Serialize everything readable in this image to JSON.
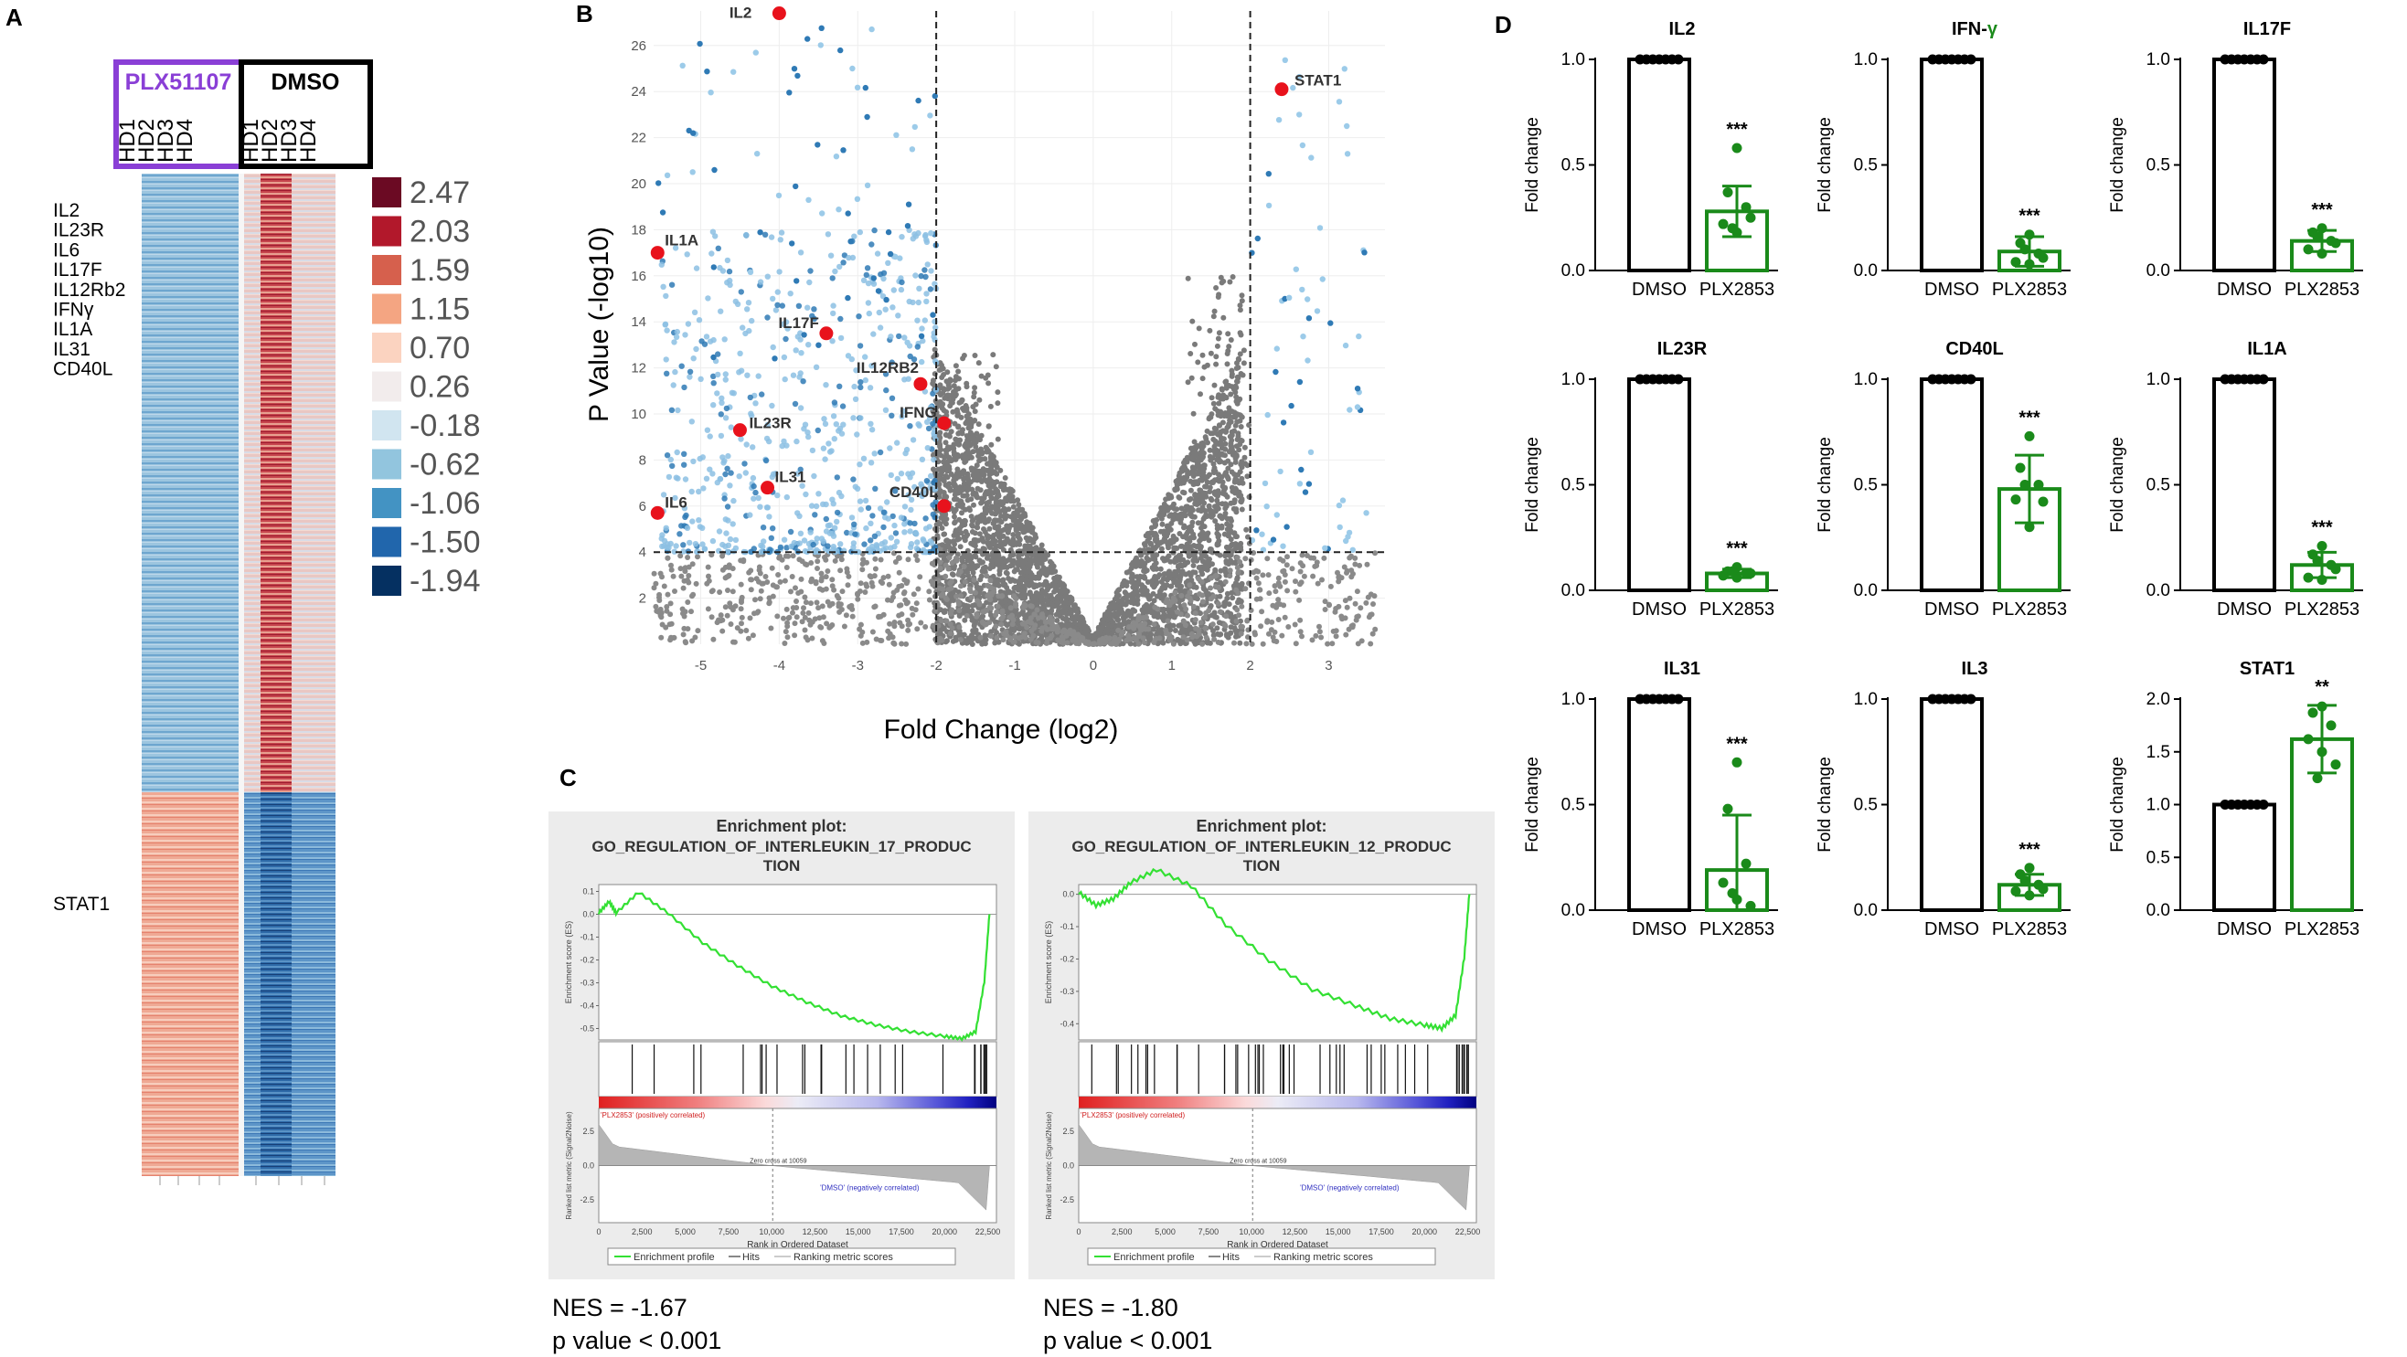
{
  "panels": {
    "a": "A",
    "b": "B",
    "c": "C",
    "d": "D"
  },
  "heatmap": {
    "group1": "PLX51107",
    "group2": "DMSO",
    "group1_color": "#8a3fd6",
    "samples1": [
      "HD1",
      "HD2",
      "HD3",
      "HD4"
    ],
    "samples2": [
      "HD1",
      "HD2",
      "HD3",
      "HD4"
    ],
    "genes_up": [
      "IL2",
      "IL23R",
      "IL6",
      "IL17F",
      "IL12Rb2",
      "IFNγ",
      "IL1A",
      "IL31",
      "CD40L"
    ],
    "genes_down": [
      "STAT1"
    ],
    "legend": [
      {
        "value": "2.47",
        "color": "#6b0a23"
      },
      {
        "value": "2.03",
        "color": "#b2182b"
      },
      {
        "value": "1.59",
        "color": "#d6604d"
      },
      {
        "value": "1.15",
        "color": "#f4a582"
      },
      {
        "value": "0.70",
        "color": "#fbd3c0"
      },
      {
        "value": "0.26",
        "color": "#f2ecec"
      },
      {
        "value": "-0.18",
        "color": "#d1e5f0"
      },
      {
        "value": "-0.62",
        "color": "#92c5de"
      },
      {
        "value": "-1.06",
        "color": "#4393c3"
      },
      {
        "value": "-1.50",
        "color": "#2166ac"
      },
      {
        "value": "-1.94",
        "color": "#053061"
      }
    ]
  },
  "volcano": {
    "xlabel": "Fold Change (log2)",
    "ylabel": "P Value (-log10)",
    "xticks": [
      -5,
      -4,
      -3,
      -2,
      -1,
      0,
      1,
      2,
      3
    ],
    "yticks": [
      2,
      4,
      6,
      8,
      10,
      12,
      14,
      16,
      18,
      20,
      22,
      24,
      26
    ],
    "xlim": [
      -5.6,
      3.6
    ],
    "ylim": [
      0,
      27.5
    ],
    "fc_threshold": 2,
    "p_threshold": 4,
    "highlighted": [
      {
        "label": "IL2",
        "x": -4.0,
        "y": 27.4
      },
      {
        "label": "STAT1",
        "x": 2.4,
        "y": 24.1
      },
      {
        "label": "IL1A",
        "x": -5.55,
        "y": 17.0
      },
      {
        "label": "IL17F",
        "x": -3.4,
        "y": 13.5
      },
      {
        "label": "IL12RB2",
        "x": -2.2,
        "y": 11.3
      },
      {
        "label": "IFNG",
        "x": -1.9,
        "y": 9.6
      },
      {
        "label": "IL23R",
        "x": -4.5,
        "y": 9.3
      },
      {
        "label": "IL31",
        "x": -4.15,
        "y": 6.8
      },
      {
        "label": "CD40L",
        "x": -1.9,
        "y": 6.0
      },
      {
        "label": "IL6",
        "x": -5.55,
        "y": 5.7
      }
    ]
  },
  "gsea": [
    {
      "title1": "Enrichment plot:",
      "title2": "GO_REGULATION_OF_INTERLEUKIN_17_PRODUC",
      "title3": "TION",
      "nes": "NES = -1.67",
      "pval": "p value < 0.001",
      "es_ticks": [
        "0.1",
        "0.0",
        "-0.1",
        "-0.2",
        "-0.3",
        "-0.4",
        "-0.5"
      ],
      "es_curve": [
        [
          0,
          0.0
        ],
        [
          600,
          0.05
        ],
        [
          1000,
          0.0
        ],
        [
          2300,
          0.09
        ],
        [
          4000,
          0.0
        ],
        [
          6000,
          -0.13
        ],
        [
          8000,
          -0.23
        ],
        [
          10000,
          -0.32
        ],
        [
          12000,
          -0.39
        ],
        [
          14000,
          -0.45
        ],
        [
          16000,
          -0.49
        ],
        [
          18000,
          -0.52
        ],
        [
          20000,
          -0.54
        ],
        [
          21000,
          -0.55
        ],
        [
          21800,
          -0.52
        ],
        [
          22300,
          -0.3
        ],
        [
          22600,
          0.0
        ]
      ]
    },
    {
      "title1": "Enrichment plot:",
      "title2": "GO_REGULATION_OF_INTERLEUKIN_12_PRODUC",
      "title3": "TION",
      "nes": "NES = -1.80",
      "pval": "p value < 0.001",
      "es_ticks": [
        "0.0",
        "-0.1",
        "-0.2",
        "-0.3",
        "-0.4"
      ],
      "es_curve": [
        [
          0,
          0.0
        ],
        [
          1000,
          -0.04
        ],
        [
          2000,
          -0.02
        ],
        [
          3000,
          0.03
        ],
        [
          4500,
          0.07
        ],
        [
          6500,
          0.02
        ],
        [
          8500,
          -0.1
        ],
        [
          11000,
          -0.21
        ],
        [
          13500,
          -0.3
        ],
        [
          16000,
          -0.35
        ],
        [
          18000,
          -0.39
        ],
        [
          20000,
          -0.41
        ],
        [
          21000,
          -0.42
        ],
        [
          21800,
          -0.38
        ],
        [
          22300,
          -0.2
        ],
        [
          22600,
          0.0
        ]
      ]
    }
  ],
  "gsea_common": {
    "ylabel_es": "Enrichment score (ES)",
    "ylabel_metric": "Ranked list metric (Signal2Noise)",
    "xlabel": "Rank in Ordered Dataset",
    "pos_label": "'PLX2853' (positively correlated)",
    "neg_label": "'DMSO' (negatively correlated)",
    "zero_cross": "Zero cross at 10059",
    "metric_ticks": [
      "2.5",
      "0.0",
      "-2.5"
    ],
    "xticks": [
      "0",
      "2,500",
      "5,000",
      "7,500",
      "10,000",
      "12,500",
      "15,000",
      "17,500",
      "20,000",
      "22,500"
    ],
    "legend": [
      "Enrichment profile",
      "Hits",
      "Ranking metric scores"
    ]
  },
  "bar_colors": {
    "dmso": "#000000",
    "plx": "#1a8a1a"
  },
  "chart_data": [
    {
      "type": "bar",
      "title": "IL2",
      "categories": [
        "DMSO",
        "PLX2853"
      ],
      "values": [
        1.0,
        0.28
      ],
      "error": [
        0,
        0.12
      ],
      "ylabel": "Fold change",
      "ylim": [
        0,
        1.0
      ],
      "yticks": [
        "0.0",
        "0.5",
        "1.0"
      ],
      "sig": "***",
      "points": [
        [
          1,
          1,
          1,
          1,
          1,
          1,
          1
        ],
        [
          0.58,
          0.37,
          0.3,
          0.22,
          0.18,
          0.25,
          0.2
        ]
      ]
    },
    {
      "type": "bar",
      "title": "IFN-γ",
      "title_main": "IFN-",
      "title_greek": "γ",
      "categories": [
        "DMSO",
        "PLX2853"
      ],
      "values": [
        1.0,
        0.09
      ],
      "error": [
        0,
        0.07
      ],
      "ylabel": "Fold change",
      "ylim": [
        0,
        1.0
      ],
      "yticks": [
        "0.0",
        "0.5",
        "1.0"
      ],
      "sig": "***",
      "points": [
        [
          1,
          1,
          1,
          1,
          1,
          1,
          1
        ],
        [
          0.17,
          0.13,
          0.08,
          0.04,
          0.03,
          0.06,
          0.1
        ]
      ]
    },
    {
      "type": "bar",
      "title": "IL17F",
      "categories": [
        "DMSO",
        "PLX2853"
      ],
      "values": [
        1.0,
        0.14
      ],
      "error": [
        0,
        0.05
      ],
      "ylabel": "Fold change",
      "ylim": [
        0,
        1.0
      ],
      "yticks": [
        "0.0",
        "0.5",
        "1.0"
      ],
      "sig": "***",
      "points": [
        [
          1,
          1,
          1,
          1,
          1,
          1,
          1
        ],
        [
          0.2,
          0.18,
          0.14,
          0.1,
          0.08,
          0.13,
          0.16
        ]
      ]
    },
    {
      "type": "bar",
      "title": "IL23R",
      "categories": [
        "DMSO",
        "PLX2853"
      ],
      "values": [
        1.0,
        0.08
      ],
      "error": [
        0,
        0.02
      ],
      "ylabel": "Fold change",
      "ylim": [
        0,
        1.0
      ],
      "yticks": [
        "0.0",
        "0.5",
        "1.0"
      ],
      "sig": "***",
      "points": [
        [
          1,
          1,
          1,
          1,
          1,
          1,
          1
        ],
        [
          0.11,
          0.09,
          0.08,
          0.07,
          0.06,
          0.08,
          0.09
        ]
      ]
    },
    {
      "type": "bar",
      "title": "CD40L",
      "categories": [
        "DMSO",
        "PLX2853"
      ],
      "values": [
        1.0,
        0.48
      ],
      "error": [
        0,
        0.16
      ],
      "ylabel": "Fold change",
      "ylim": [
        0,
        1.0
      ],
      "yticks": [
        "0.0",
        "0.5",
        "1.0"
      ],
      "sig": "***",
      "points": [
        [
          1,
          1,
          1,
          1,
          1,
          1,
          1
        ],
        [
          0.73,
          0.58,
          0.5,
          0.43,
          0.3,
          0.42,
          0.5
        ]
      ]
    },
    {
      "type": "bar",
      "title": "IL1A",
      "categories": [
        "DMSO",
        "PLX2853"
      ],
      "values": [
        1.0,
        0.12
      ],
      "error": [
        0,
        0.06
      ],
      "ylabel": "Fold change",
      "ylim": [
        0,
        1.0
      ],
      "yticks": [
        "0.0",
        "0.5",
        "1.0"
      ],
      "sig": "***",
      "points": [
        [
          1,
          1,
          1,
          1,
          1,
          1,
          1
        ],
        [
          0.21,
          0.17,
          0.12,
          0.06,
          0.05,
          0.1,
          0.14
        ]
      ]
    },
    {
      "type": "bar",
      "title": "IL31",
      "categories": [
        "DMSO",
        "PLX2853"
      ],
      "values": [
        1.0,
        0.19
      ],
      "error": [
        0,
        0.26
      ],
      "ylabel": "Fold change",
      "ylim": [
        0,
        1.0
      ],
      "yticks": [
        "0.0",
        "0.5",
        "1.0"
      ],
      "sig": "***",
      "points": [
        [
          1,
          1,
          1,
          1,
          1,
          1,
          1
        ],
        [
          0.7,
          0.48,
          0.22,
          0.13,
          0.05,
          0.02,
          0.08
        ]
      ]
    },
    {
      "type": "bar",
      "title": "IL3",
      "categories": [
        "DMSO",
        "PLX2853"
      ],
      "values": [
        1.0,
        0.12
      ],
      "error": [
        0,
        0.05
      ],
      "ylabel": "Fold change",
      "ylim": [
        0,
        1.0
      ],
      "yticks": [
        "0.0",
        "0.5",
        "1.0"
      ],
      "sig": "***",
      "points": [
        [
          1,
          1,
          1,
          1,
          1,
          1,
          1
        ],
        [
          0.2,
          0.17,
          0.12,
          0.09,
          0.07,
          0.1,
          0.14
        ]
      ]
    },
    {
      "type": "bar",
      "title": "STAT1",
      "categories": [
        "DMSO",
        "PLX2853"
      ],
      "values": [
        1.0,
        1.62
      ],
      "error": [
        0,
        0.32
      ],
      "ylabel": "Fold change",
      "ylim": [
        0,
        2.0
      ],
      "yticks": [
        "0.0",
        "0.5",
        "1.0",
        "1.5",
        "2.0"
      ],
      "sig": "**",
      "points": [
        [
          1,
          1,
          1,
          1,
          1,
          1,
          1
        ],
        [
          1.93,
          1.87,
          1.75,
          1.62,
          1.5,
          1.38,
          1.25
        ]
      ]
    }
  ]
}
